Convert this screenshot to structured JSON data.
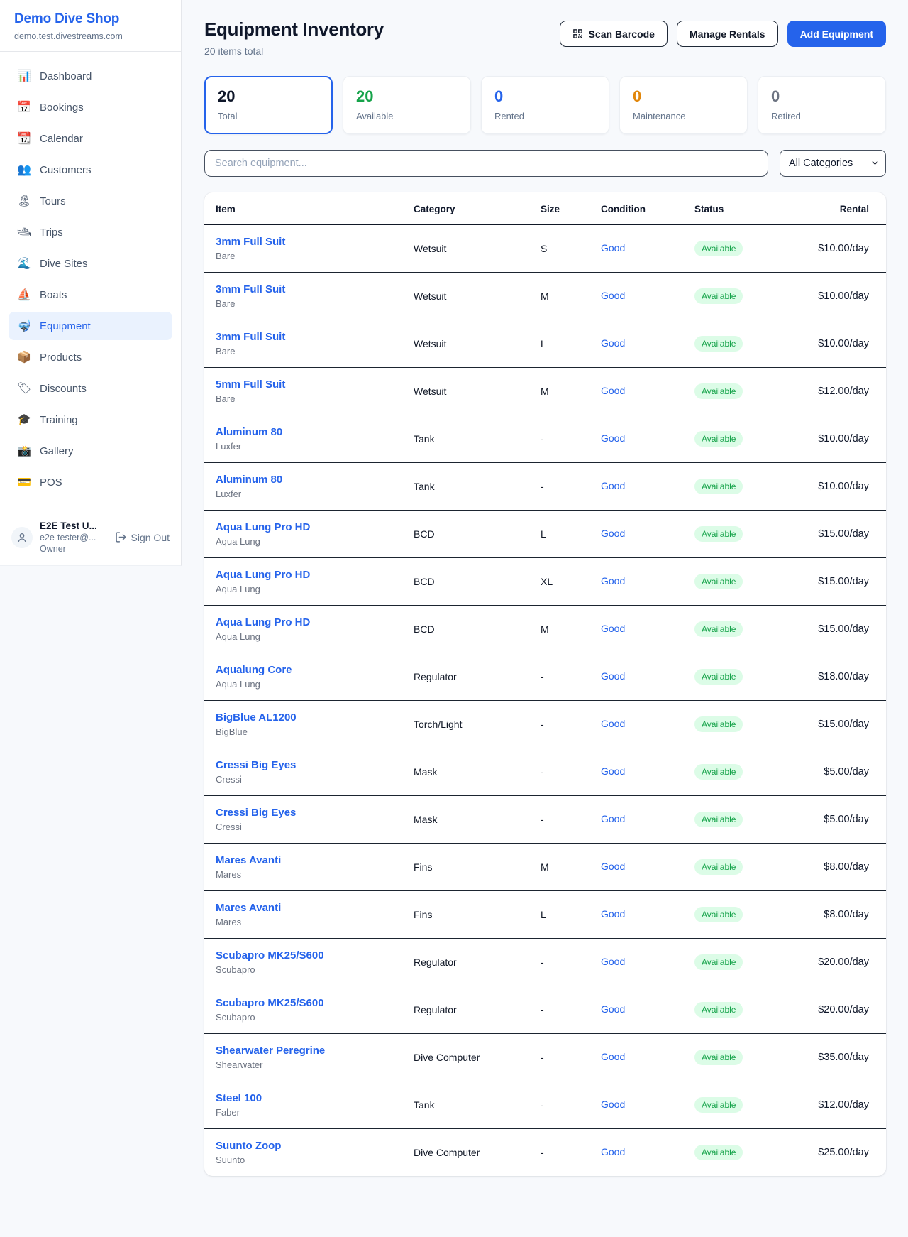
{
  "sidebar": {
    "brand": "Demo Dive Shop",
    "domain": "demo.test.divestreams.com",
    "items": [
      {
        "id": "dashboard",
        "icon": "📊",
        "icon_name": "bar-chart-icon",
        "label": "Dashboard",
        "active": false
      },
      {
        "id": "bookings",
        "icon": "📅",
        "icon_name": "calendar-date-icon",
        "label": "Bookings",
        "active": false
      },
      {
        "id": "calendar",
        "icon": "📆",
        "icon_name": "calendar-icon",
        "label": "Calendar",
        "active": false
      },
      {
        "id": "customers",
        "icon": "👥",
        "icon_name": "people-icon",
        "label": "Customers",
        "active": false
      },
      {
        "id": "tours",
        "icon": "🏝",
        "icon_name": "island-icon",
        "label": "Tours",
        "active": false
      },
      {
        "id": "trips",
        "icon": "🛥",
        "icon_name": "motorboat-icon",
        "label": "Trips",
        "active": false
      },
      {
        "id": "dive-sites",
        "icon": "🌊",
        "icon_name": "wave-icon",
        "label": "Dive Sites",
        "active": false
      },
      {
        "id": "boats",
        "icon": "⛵",
        "icon_name": "sailboat-icon",
        "label": "Boats",
        "active": false
      },
      {
        "id": "equipment",
        "icon": "🤿",
        "icon_name": "dive-mask-icon",
        "label": "Equipment",
        "active": true
      },
      {
        "id": "products",
        "icon": "📦",
        "icon_name": "package-icon",
        "label": "Products",
        "active": false
      },
      {
        "id": "discounts",
        "icon": "🏷",
        "icon_name": "tag-icon",
        "label": "Discounts",
        "active": false
      },
      {
        "id": "training",
        "icon": "🎓",
        "icon_name": "graduation-cap-icon",
        "label": "Training",
        "active": false
      },
      {
        "id": "gallery",
        "icon": "📸",
        "icon_name": "camera-icon",
        "label": "Gallery",
        "active": false
      },
      {
        "id": "pos",
        "icon": "💳",
        "icon_name": "credit-card-icon",
        "label": "POS",
        "active": false
      }
    ],
    "user": {
      "name": "E2E Test U...",
      "email": "e2e-tester@...",
      "role": "Owner",
      "sign_out_label": "Sign Out"
    }
  },
  "header": {
    "title": "Equipment Inventory",
    "subtitle": "20 items total",
    "scan_barcode_label": "Scan Barcode",
    "manage_rentals_label": "Manage Rentals",
    "add_equipment_label": "Add Equipment"
  },
  "stats": [
    {
      "value": "20",
      "label": "Total",
      "color": "#0f172a",
      "highlight": true
    },
    {
      "value": "20",
      "label": "Available",
      "color": "#16a34a",
      "highlight": false
    },
    {
      "value": "0",
      "label": "Rented",
      "color": "#2563eb",
      "highlight": false
    },
    {
      "value": "0",
      "label": "Maintenance",
      "color": "#e1860a",
      "highlight": false
    },
    {
      "value": "0",
      "label": "Retired",
      "color": "#6b7280",
      "highlight": false
    }
  ],
  "filters": {
    "search_placeholder": "Search equipment...",
    "category_selected": "All Categories"
  },
  "table": {
    "columns": [
      "Item",
      "Category",
      "Size",
      "Condition",
      "Status",
      "Rental"
    ],
    "rows": [
      {
        "name": "3mm Full Suit",
        "brand": "Bare",
        "category": "Wetsuit",
        "size": "S",
        "condition": "Good",
        "status": "Available",
        "rental": "$10.00/day"
      },
      {
        "name": "3mm Full Suit",
        "brand": "Bare",
        "category": "Wetsuit",
        "size": "M",
        "condition": "Good",
        "status": "Available",
        "rental": "$10.00/day"
      },
      {
        "name": "3mm Full Suit",
        "brand": "Bare",
        "category": "Wetsuit",
        "size": "L",
        "condition": "Good",
        "status": "Available",
        "rental": "$10.00/day"
      },
      {
        "name": "5mm Full Suit",
        "brand": "Bare",
        "category": "Wetsuit",
        "size": "M",
        "condition": "Good",
        "status": "Available",
        "rental": "$12.00/day"
      },
      {
        "name": "Aluminum 80",
        "brand": "Luxfer",
        "category": "Tank",
        "size": "-",
        "condition": "Good",
        "status": "Available",
        "rental": "$10.00/day"
      },
      {
        "name": "Aluminum 80",
        "brand": "Luxfer",
        "category": "Tank",
        "size": "-",
        "condition": "Good",
        "status": "Available",
        "rental": "$10.00/day"
      },
      {
        "name": "Aqua Lung Pro HD",
        "brand": "Aqua Lung",
        "category": "BCD",
        "size": "L",
        "condition": "Good",
        "status": "Available",
        "rental": "$15.00/day"
      },
      {
        "name": "Aqua Lung Pro HD",
        "brand": "Aqua Lung",
        "category": "BCD",
        "size": "XL",
        "condition": "Good",
        "status": "Available",
        "rental": "$15.00/day"
      },
      {
        "name": "Aqua Lung Pro HD",
        "brand": "Aqua Lung",
        "category": "BCD",
        "size": "M",
        "condition": "Good",
        "status": "Available",
        "rental": "$15.00/day"
      },
      {
        "name": "Aqualung Core",
        "brand": "Aqua Lung",
        "category": "Regulator",
        "size": "-",
        "condition": "Good",
        "status": "Available",
        "rental": "$18.00/day"
      },
      {
        "name": "BigBlue AL1200",
        "brand": "BigBlue",
        "category": "Torch/Light",
        "size": "-",
        "condition": "Good",
        "status": "Available",
        "rental": "$15.00/day"
      },
      {
        "name": "Cressi Big Eyes",
        "brand": "Cressi",
        "category": "Mask",
        "size": "-",
        "condition": "Good",
        "status": "Available",
        "rental": "$5.00/day"
      },
      {
        "name": "Cressi Big Eyes",
        "brand": "Cressi",
        "category": "Mask",
        "size": "-",
        "condition": "Good",
        "status": "Available",
        "rental": "$5.00/day"
      },
      {
        "name": "Mares Avanti",
        "brand": "Mares",
        "category": "Fins",
        "size": "M",
        "condition": "Good",
        "status": "Available",
        "rental": "$8.00/day"
      },
      {
        "name": "Mares Avanti",
        "brand": "Mares",
        "category": "Fins",
        "size": "L",
        "condition": "Good",
        "status": "Available",
        "rental": "$8.00/day"
      },
      {
        "name": "Scubapro MK25/S600",
        "brand": "Scubapro",
        "category": "Regulator",
        "size": "-",
        "condition": "Good",
        "status": "Available",
        "rental": "$20.00/day"
      },
      {
        "name": "Scubapro MK25/S600",
        "brand": "Scubapro",
        "category": "Regulator",
        "size": "-",
        "condition": "Good",
        "status": "Available",
        "rental": "$20.00/day"
      },
      {
        "name": "Shearwater Peregrine",
        "brand": "Shearwater",
        "category": "Dive Computer",
        "size": "-",
        "condition": "Good",
        "status": "Available",
        "rental": "$35.00/day"
      },
      {
        "name": "Steel 100",
        "brand": "Faber",
        "category": "Tank",
        "size": "-",
        "condition": "Good",
        "status": "Available",
        "rental": "$12.00/day"
      },
      {
        "name": "Suunto Zoop",
        "brand": "Suunto",
        "category": "Dive Computer",
        "size": "-",
        "condition": "Good",
        "status": "Available",
        "rental": "$25.00/day"
      }
    ]
  },
  "colors": {
    "accent": "#2563eb",
    "available_badge_bg": "#dcfce7",
    "available_badge_text": "#16a34a",
    "page_bg": "#f7f9fc"
  }
}
